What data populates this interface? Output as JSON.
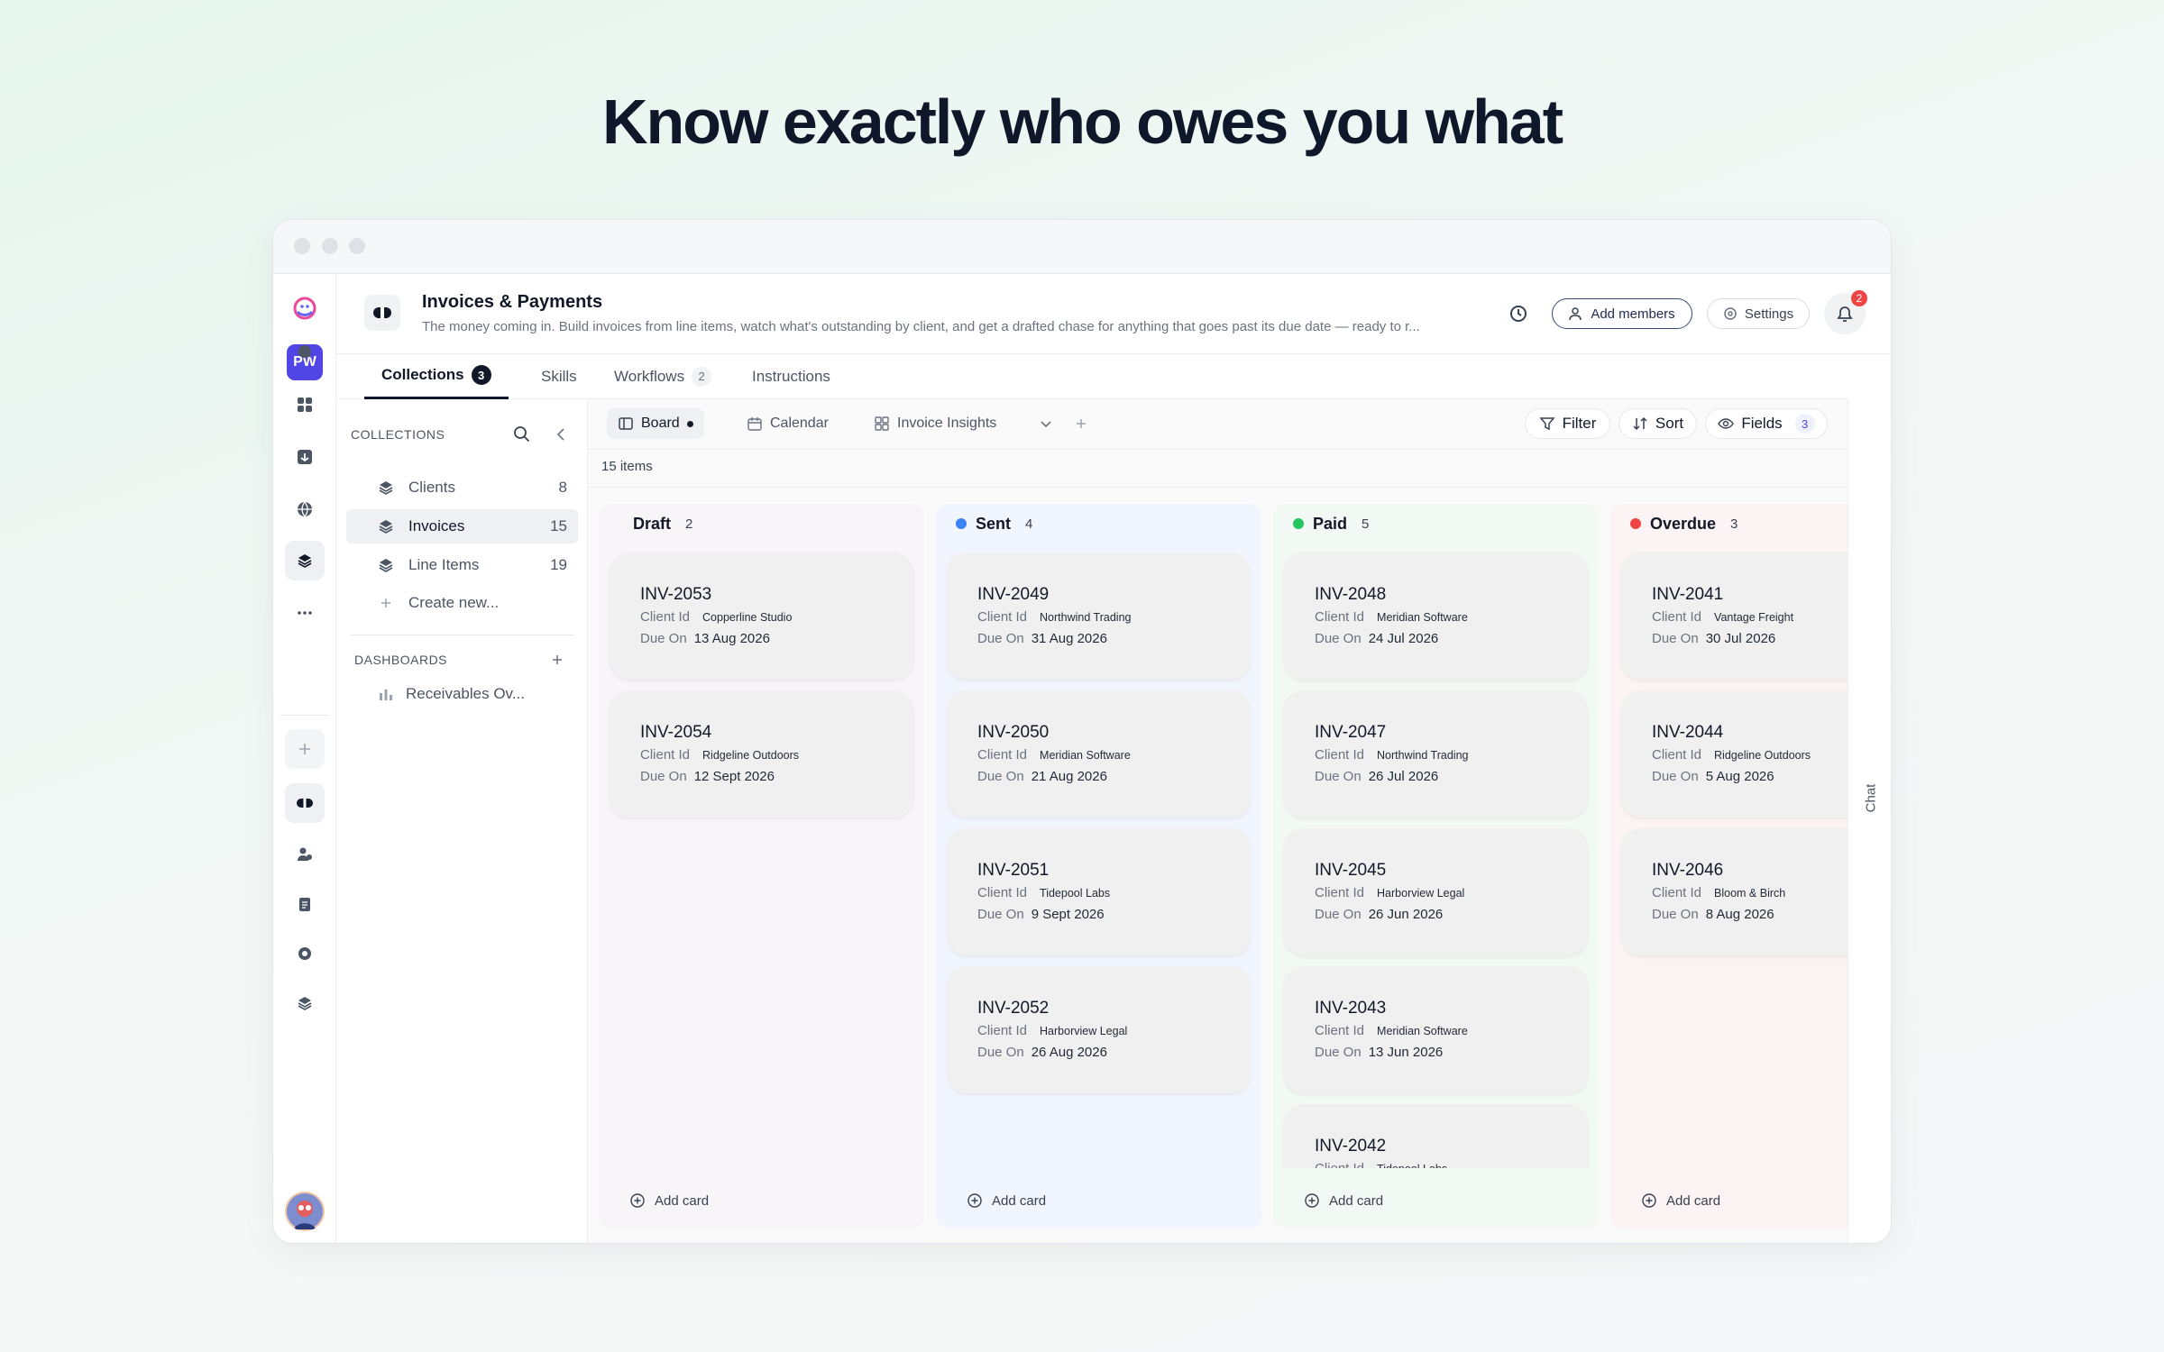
{
  "headline": "Know exactly who owes you what",
  "rail": {
    "workspace": "PW"
  },
  "header": {
    "title": "Invoices & Payments",
    "description": "The money coming in. Build invoices from line items, watch what's outstanding by client, and get a drafted chase for anything that goes past its due date — ready to r...",
    "add_members": "Add members",
    "settings": "Settings",
    "notifications": 2
  },
  "tabs": [
    {
      "label": "Collections",
      "count": 3
    },
    {
      "label": "Skills"
    },
    {
      "label": "Workflows",
      "count": 2
    },
    {
      "label": "Instructions"
    }
  ],
  "sidebar": {
    "collections_heading": "COLLECTIONS",
    "collections": [
      {
        "name": "Clients",
        "count": 8
      },
      {
        "name": "Invoices",
        "count": 15
      },
      {
        "name": "Line Items",
        "count": 19
      }
    ],
    "create": "Create new...",
    "dashboards_heading": "DASHBOARDS",
    "dashboards": [
      "Receivables Ov..."
    ]
  },
  "toolbar": {
    "views": [
      "Board",
      "Calendar",
      "Invoice Insights"
    ],
    "filter": "Filter",
    "sort": "Sort",
    "fields": "Fields",
    "fields_count": 3
  },
  "item_count": "15 items",
  "card_labels": {
    "client": "Client Id",
    "due": "Due On"
  },
  "add_card": "Add card",
  "chat": "Chat",
  "columns": [
    {
      "name": "Draft",
      "count": 2,
      "cards": [
        {
          "id": "INV-2053",
          "client": "Copperline Studio",
          "due": "13 Aug 2026"
        },
        {
          "id": "INV-2054",
          "client": "Ridgeline Outdoors",
          "due": "12 Sept 2026"
        }
      ]
    },
    {
      "name": "Sent",
      "count": 4,
      "color": "#3b82f6",
      "cards": [
        {
          "id": "INV-2049",
          "client": "Northwind Trading",
          "due": "31 Aug 2026"
        },
        {
          "id": "INV-2050",
          "client": "Meridian Software",
          "due": "21 Aug 2026"
        },
        {
          "id": "INV-2051",
          "client": "Tidepool Labs",
          "due": "9 Sept 2026"
        },
        {
          "id": "INV-2052",
          "client": "Harborview Legal",
          "due": "26 Aug 2026"
        }
      ]
    },
    {
      "name": "Paid",
      "count": 5,
      "color": "#22c55e",
      "cards": [
        {
          "id": "INV-2048",
          "client": "Meridian Software",
          "due": "24 Jul 2026"
        },
        {
          "id": "INV-2047",
          "client": "Northwind Trading",
          "due": "26 Jul 2026"
        },
        {
          "id": "INV-2045",
          "client": "Harborview Legal",
          "due": "26 Jun 2026"
        },
        {
          "id": "INV-2043",
          "client": "Meridian Software",
          "due": "13 Jun 2026"
        },
        {
          "id": "INV-2042",
          "client": "Tidepool Labs"
        }
      ]
    },
    {
      "name": "Overdue",
      "count": 3,
      "color": "#ef4444",
      "cards": [
        {
          "id": "INV-2041",
          "client": "Vantage Freight",
          "due": "30 Jul 2026"
        },
        {
          "id": "INV-2044",
          "client": "Ridgeline Outdoors",
          "due": "5 Aug 2026"
        },
        {
          "id": "INV-2046",
          "client": "Bloom & Birch",
          "due": "8 Aug 2026"
        }
      ]
    }
  ]
}
